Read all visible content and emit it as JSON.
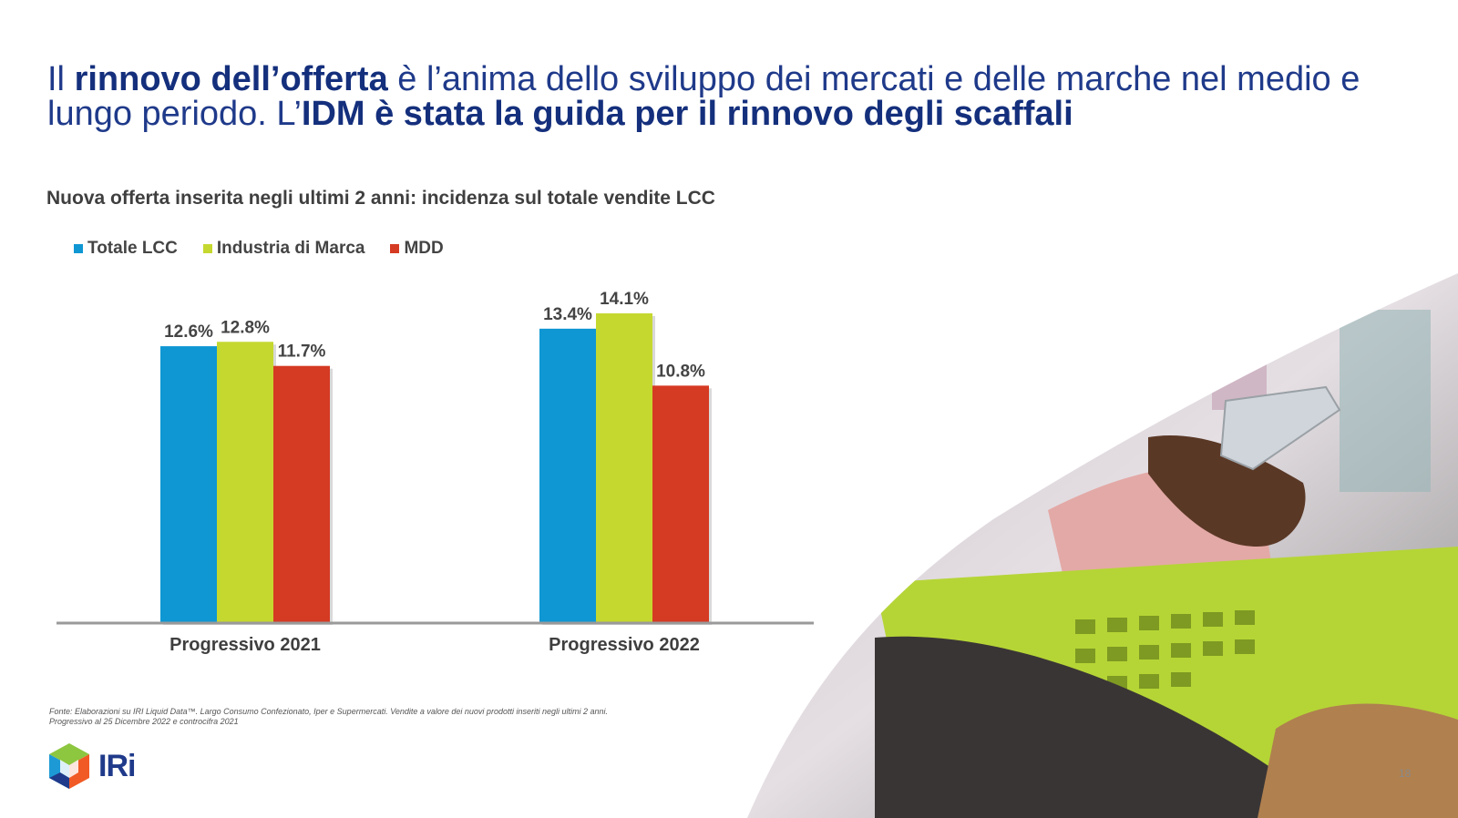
{
  "title": {
    "p1": "Il ",
    "b1": "rinnovo dell’offerta",
    "p2": " è l’anima dello sviluppo dei mercati e delle marche nel medio e lungo periodo. L’",
    "b2": "IDM è stata la guida per il rinnovo degli scaffali"
  },
  "chart_data": {
    "type": "bar",
    "title": "Nuova offerta inserita negli ultimi 2 anni: incidenza sul totale vendite LCC",
    "categories": [
      "Progressivo 2021",
      "Progressivo 2022"
    ],
    "series": [
      {
        "name": "Totale LCC",
        "values": [
          12.6,
          13.4
        ],
        "labels": [
          "12.6%",
          "13.4%"
        ],
        "color": "#0f97d3"
      },
      {
        "name": "Industria di Marca",
        "values": [
          12.8,
          14.1
        ],
        "labels": [
          "12.8%",
          "14.1%"
        ],
        "color": "#c5d82f"
      },
      {
        "name": "MDD",
        "values": [
          11.7,
          10.8
        ],
        "labels": [
          "11.7%",
          "10.8%"
        ],
        "color": "#d53a23"
      }
    ],
    "ylim": [
      0,
      14.1
    ],
    "grid": false,
    "legend_position": "top-left"
  },
  "footnote": {
    "line1": "Fonte: Elaborazioni su IRI Liquid Data™. Largo Consumo Confezionato, Iper e Supermercati. Vendite a valore dei nuovi prodotti inseriti negli ultimi  2 anni.",
    "line2": "Progressivo al 25 Dicembre 2022  e controcifra 2021"
  },
  "logo": {
    "text": "IRi"
  },
  "page_number": "18",
  "colors": {
    "title": "#1f3a8a",
    "photo_bg": "#d9d4d8",
    "cart": "#b5d536"
  }
}
